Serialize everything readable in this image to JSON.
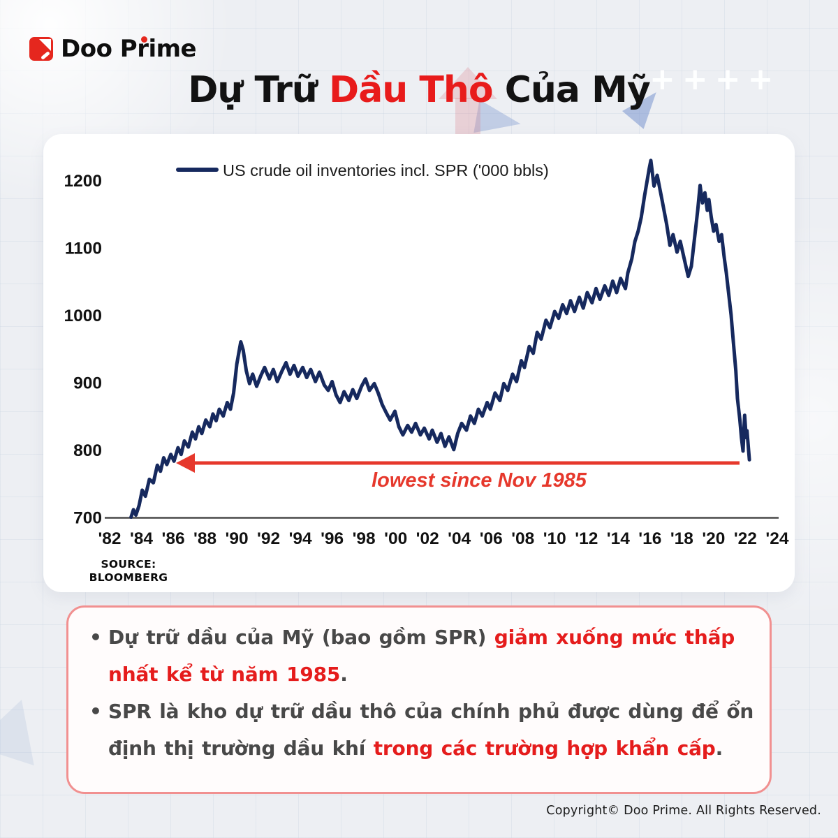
{
  "header": {
    "logo": {
      "brand": "Doo Prime"
    },
    "title_segments": [
      {
        "text": "Dự Trữ ",
        "style": "title-dark"
      },
      {
        "text": "Dầu Thô",
        "style": "title-red"
      },
      {
        "text": " Của Mỹ",
        "style": "title-dark"
      }
    ]
  },
  "chart_card": {
    "legend": {
      "label": "US crude oil inventories incl. SPR ('000 bbls)"
    },
    "annotation": {
      "text": "lowest since Nov 1985"
    },
    "source": {
      "line1": "SOURCE:",
      "line2": "BLOOMBERG"
    }
  },
  "chart_data": {
    "type": "line",
    "title": "Dự Trữ Dầu Thô Của Mỹ",
    "legend_position": "top-left",
    "grid": false,
    "xlim": [
      1982,
      2024.5
    ],
    "ylim": [
      700,
      1250
    ],
    "y_ticks": [
      700,
      800,
      900,
      1000,
      1100,
      1200
    ],
    "x_ticks": [
      "'82",
      "'84",
      "'86",
      "'88",
      "'90",
      "'92",
      "'94",
      "'96",
      "'98",
      "'00",
      "'02",
      "'04",
      "'06",
      "'08",
      "'10",
      "'12",
      "'14",
      "'16",
      "'18",
      "'20",
      "'22",
      "'24"
    ],
    "annotation": "lowest since Nov 1985",
    "series": [
      {
        "name": "US crude oil inventories incl. SPR ('000 bbls)",
        "points": [
          [
            1983.35,
            700
          ],
          [
            1983.5,
            711
          ],
          [
            1983.65,
            703
          ],
          [
            1983.85,
            717
          ],
          [
            1984.05,
            740
          ],
          [
            1984.25,
            731
          ],
          [
            1984.5,
            756
          ],
          [
            1984.75,
            751
          ],
          [
            1985.0,
            777
          ],
          [
            1985.2,
            768
          ],
          [
            1985.4,
            788
          ],
          [
            1985.6,
            778
          ],
          [
            1985.85,
            793
          ],
          [
            1986.05,
            783
          ],
          [
            1986.3,
            803
          ],
          [
            1986.5,
            793
          ],
          [
            1986.7,
            813
          ],
          [
            1986.95,
            804
          ],
          [
            1987.2,
            826
          ],
          [
            1987.4,
            816
          ],
          [
            1987.6,
            834
          ],
          [
            1987.8,
            824
          ],
          [
            1988.05,
            844
          ],
          [
            1988.3,
            834
          ],
          [
            1988.5,
            853
          ],
          [
            1988.7,
            843
          ],
          [
            1988.9,
            860
          ],
          [
            1989.15,
            850
          ],
          [
            1989.4,
            870
          ],
          [
            1989.6,
            860
          ],
          [
            1989.8,
            884
          ],
          [
            1990.0,
            927
          ],
          [
            1990.25,
            960
          ],
          [
            1990.4,
            948
          ],
          [
            1990.6,
            917
          ],
          [
            1990.8,
            898
          ],
          [
            1991.0,
            912
          ],
          [
            1991.25,
            894
          ],
          [
            1991.5,
            909
          ],
          [
            1991.75,
            922
          ],
          [
            1992.05,
            905
          ],
          [
            1992.3,
            919
          ],
          [
            1992.55,
            901
          ],
          [
            1992.85,
            917
          ],
          [
            1993.1,
            929
          ],
          [
            1993.35,
            912
          ],
          [
            1993.6,
            925
          ],
          [
            1993.85,
            909
          ],
          [
            1994.15,
            922
          ],
          [
            1994.4,
            907
          ],
          [
            1994.65,
            919
          ],
          [
            1994.95,
            901
          ],
          [
            1995.2,
            915
          ],
          [
            1995.5,
            896
          ],
          [
            1995.75,
            888
          ],
          [
            1996.0,
            901
          ],
          [
            1996.25,
            881
          ],
          [
            1996.5,
            870
          ],
          [
            1996.75,
            886
          ],
          [
            1997.05,
            873
          ],
          [
            1997.3,
            889
          ],
          [
            1997.55,
            876
          ],
          [
            1997.85,
            894
          ],
          [
            1998.1,
            905
          ],
          [
            1998.35,
            888
          ],
          [
            1998.65,
            898
          ],
          [
            1998.9,
            884
          ],
          [
            1999.15,
            867
          ],
          [
            1999.4,
            855
          ],
          [
            1999.65,
            844
          ],
          [
            1999.95,
            857
          ],
          [
            2000.2,
            834
          ],
          [
            2000.45,
            822
          ],
          [
            2000.75,
            836
          ],
          [
            2001.0,
            826
          ],
          [
            2001.25,
            839
          ],
          [
            2001.55,
            822
          ],
          [
            2001.8,
            832
          ],
          [
            2002.1,
            816
          ],
          [
            2002.3,
            829
          ],
          [
            2002.6,
            811
          ],
          [
            2002.85,
            824
          ],
          [
            2003.1,
            805
          ],
          [
            2003.35,
            819
          ],
          [
            2003.65,
            800
          ],
          [
            2003.9,
            824
          ],
          [
            2004.15,
            839
          ],
          [
            2004.45,
            829
          ],
          [
            2004.7,
            850
          ],
          [
            2004.95,
            839
          ],
          [
            2005.2,
            860
          ],
          [
            2005.45,
            850
          ],
          [
            2005.75,
            870
          ],
          [
            2005.95,
            860
          ],
          [
            2006.25,
            884
          ],
          [
            2006.55,
            873
          ],
          [
            2006.8,
            898
          ],
          [
            2007.05,
            888
          ],
          [
            2007.35,
            912
          ],
          [
            2007.6,
            901
          ],
          [
            2007.9,
            932
          ],
          [
            2008.1,
            922
          ],
          [
            2008.4,
            953
          ],
          [
            2008.65,
            943
          ],
          [
            2008.9,
            974
          ],
          [
            2009.15,
            964
          ],
          [
            2009.45,
            992
          ],
          [
            2009.7,
            981
          ],
          [
            2010.0,
            1005
          ],
          [
            2010.25,
            995
          ],
          [
            2010.5,
            1015
          ],
          [
            2010.75,
            1002
          ],
          [
            2011.0,
            1021
          ],
          [
            2011.25,
            1005
          ],
          [
            2011.55,
            1026
          ],
          [
            2011.8,
            1010
          ],
          [
            2012.05,
            1033
          ],
          [
            2012.35,
            1018
          ],
          [
            2012.6,
            1039
          ],
          [
            2012.85,
            1023
          ],
          [
            2013.15,
            1043
          ],
          [
            2013.4,
            1029
          ],
          [
            2013.65,
            1050
          ],
          [
            2013.9,
            1033
          ],
          [
            2014.15,
            1054
          ],
          [
            2014.45,
            1039
          ],
          [
            2014.6,
            1062
          ],
          [
            2014.85,
            1083
          ],
          [
            2015.05,
            1109
          ],
          [
            2015.25,
            1124
          ],
          [
            2015.45,
            1145
          ],
          [
            2015.65,
            1176
          ],
          [
            2015.95,
            1217
          ],
          [
            2016.05,
            1229
          ],
          [
            2016.25,
            1191
          ],
          [
            2016.45,
            1207
          ],
          [
            2016.75,
            1171
          ],
          [
            2017.05,
            1134
          ],
          [
            2017.25,
            1103
          ],
          [
            2017.45,
            1119
          ],
          [
            2017.7,
            1093
          ],
          [
            2017.9,
            1109
          ],
          [
            2018.15,
            1083
          ],
          [
            2018.4,
            1057
          ],
          [
            2018.6,
            1072
          ],
          [
            2018.8,
            1114
          ],
          [
            2019.0,
            1155
          ],
          [
            2019.15,
            1192
          ],
          [
            2019.3,
            1166
          ],
          [
            2019.45,
            1181
          ],
          [
            2019.6,
            1155
          ],
          [
            2019.7,
            1171
          ],
          [
            2019.85,
            1145
          ],
          [
            2020.0,
            1124
          ],
          [
            2020.15,
            1134
          ],
          [
            2020.35,
            1109
          ],
          [
            2020.5,
            1119
          ],
          [
            2020.65,
            1088
          ],
          [
            2020.8,
            1062
          ],
          [
            2020.95,
            1031
          ],
          [
            2021.1,
            1000
          ],
          [
            2021.25,
            958
          ],
          [
            2021.4,
            917
          ],
          [
            2021.5,
            876
          ],
          [
            2021.65,
            845
          ],
          [
            2021.75,
            818
          ],
          [
            2021.85,
            798
          ],
          [
            2021.95,
            851
          ],
          [
            2022.05,
            818
          ],
          [
            2022.1,
            828
          ],
          [
            2022.25,
            785
          ]
        ]
      }
    ]
  },
  "notes_box": {
    "bullet_marker": "•",
    "bullets": [
      {
        "segments": [
          {
            "text": "Dự trữ dầu của Mỹ (bao gồm SPR) ",
            "style": "dark"
          },
          {
            "text": "giảm xuống mức thấp\nnhất kể từ năm 1985",
            "style": "red"
          },
          {
            "text": ".",
            "style": "dark"
          }
        ]
      },
      {
        "segments": [
          {
            "text": "SPR là kho dự trữ dầu thô của chính phủ được dùng để ổn\nđịnh thị trường dầu khí ",
            "style": "dark"
          },
          {
            "text": "trong các trường hợp khẩn cấp",
            "style": "red"
          },
          {
            "text": ".",
            "style": "dark"
          }
        ]
      }
    ]
  },
  "footer": {
    "copyright": "Copyright© Doo Prime. All Rights Reserved."
  },
  "decor": {
    "plus_pattern": "++++"
  },
  "colors": {
    "line_navy": "#16295e",
    "arrow_red": "#e6382c",
    "title_red": "#e81b1b",
    "body_red": "#e51c1c",
    "box_border": "#f19090",
    "logo_red": "#e5271e",
    "axis_gray": "#4a4a4a"
  }
}
